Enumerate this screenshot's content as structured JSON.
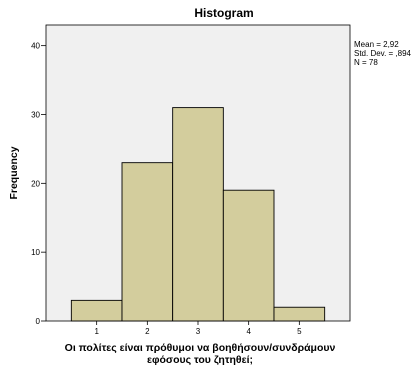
{
  "chart_data": {
    "type": "bar",
    "title": "Histogram",
    "xlabel_lines": [
      "Οι πολίτες είναι πρόθυμοι να βοηθήσουν/συνδράμουν",
      "εφόσους του ζητηθεί;"
    ],
    "ylabel": "Frequency",
    "categories": [
      "1",
      "2",
      "3",
      "4",
      "5"
    ],
    "values": [
      3,
      23,
      31,
      19,
      2
    ],
    "bin_edges": [
      0.5,
      1.5,
      2.5,
      3.5,
      4.5,
      5.5
    ],
    "xlim": [
      0.0,
      6.0
    ],
    "ylim": [
      0,
      43
    ],
    "yticks": [
      0,
      10,
      20,
      30,
      40
    ],
    "grid": false,
    "stats": [
      "Mean = 2,92",
      "Std. Dev. = ,894",
      "N = 78"
    ],
    "colors": {
      "bar_fill": "#d3cd9d",
      "plot_bg": "#f0f0f0",
      "outline": "#000000"
    }
  }
}
